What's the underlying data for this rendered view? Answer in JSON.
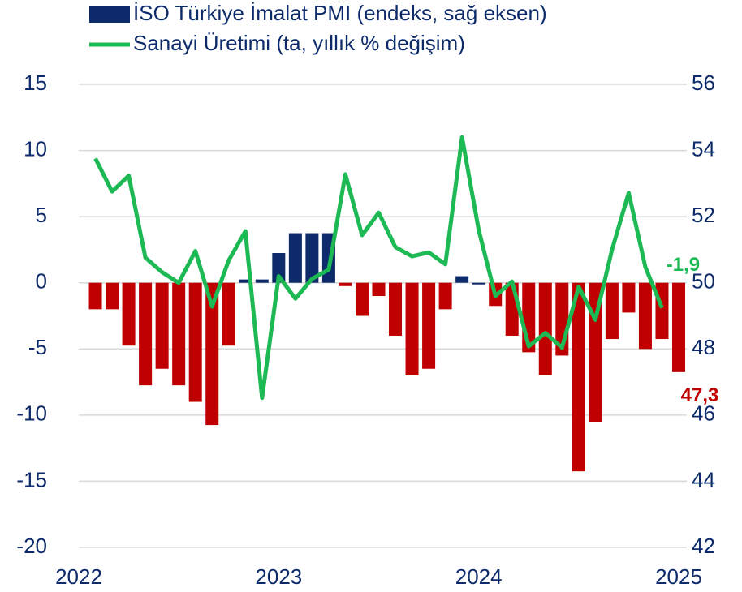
{
  "chart_data": {
    "type": "bar+line",
    "categories": [
      null,
      null,
      null,
      null,
      null,
      null,
      null,
      null,
      null,
      null,
      null,
      null,
      null,
      null,
      null,
      null,
      null,
      null,
      null,
      null,
      null,
      null,
      null,
      null,
      null,
      null,
      null,
      null,
      null,
      null,
      null,
      null,
      null,
      null,
      null,
      null
    ],
    "xlim": [
      0,
      36
    ],
    "xticks": [
      {
        "value": 0,
        "label": "2022"
      },
      {
        "value": 12,
        "label": "2023"
      },
      {
        "value": 24,
        "label": "2024"
      },
      {
        "value": 36,
        "label": "2025"
      }
    ],
    "ylim": [
      -20,
      15
    ],
    "yticks": [
      -20,
      -15,
      -10,
      -5,
      0,
      5,
      10,
      15
    ],
    "y2lim": [
      42,
      56
    ],
    "y2ticks": [
      42,
      44,
      46,
      48,
      50,
      52,
      54,
      56
    ],
    "grid": true,
    "legend": "top",
    "series": [
      {
        "name": "İSO Türkiye İmalat PMI (endeks, sağ eksen)",
        "type": "bar",
        "axis": "y2",
        "color": "#0d2a6b",
        "negative_color": "#c00000",
        "bar_base": 50,
        "values": [
          49.2,
          49.2,
          48.1,
          46.9,
          47.4,
          46.9,
          46.4,
          45.7,
          48.1,
          50.1,
          50.1,
          50.9,
          51.5,
          51.5,
          51.5,
          49.9,
          49.0,
          49.6,
          48.4,
          47.2,
          47.4,
          49.2,
          50.2,
          50.0,
          49.3,
          48.4,
          47.9,
          47.2,
          47.8,
          44.3,
          45.8,
          48.3,
          49.1,
          48.0,
          48.3,
          47.3
        ],
        "value_labels": [
          null,
          null,
          null,
          null,
          null,
          null,
          null,
          null,
          null,
          null,
          null,
          null,
          null,
          null,
          null,
          null,
          null,
          null,
          null,
          null,
          null,
          null,
          null,
          null,
          null,
          null,
          null,
          null,
          null,
          null,
          null,
          null,
          null,
          null,
          null,
          "47,3"
        ]
      },
      {
        "name": "Sanayi Üretimi (ta, yıllık % değişim)",
        "type": "line",
        "axis": "y",
        "color": "#1db954",
        "values": [
          9.4,
          6.9,
          8.1,
          1.9,
          0.8,
          0,
          2.4,
          -1.8,
          1.7,
          3.9,
          -8.7,
          0.5,
          -1.2,
          0.3,
          1.0,
          8.2,
          3.6,
          5.3,
          2.7,
          2.0,
          2.3,
          1.4,
          11.0,
          4.0,
          -1.0,
          0.1,
          -4.8,
          -3.8,
          -4.9,
          -0.3,
          -2.8,
          2.5,
          6.8,
          1.2,
          -1.9,
          null
        ],
        "value_labels": [
          null,
          null,
          null,
          null,
          null,
          null,
          null,
          null,
          null,
          null,
          null,
          null,
          null,
          null,
          null,
          null,
          null,
          null,
          null,
          null,
          null,
          null,
          null,
          null,
          null,
          null,
          null,
          null,
          null,
          null,
          null,
          null,
          null,
          null,
          "-1,9",
          null
        ]
      }
    ]
  }
}
